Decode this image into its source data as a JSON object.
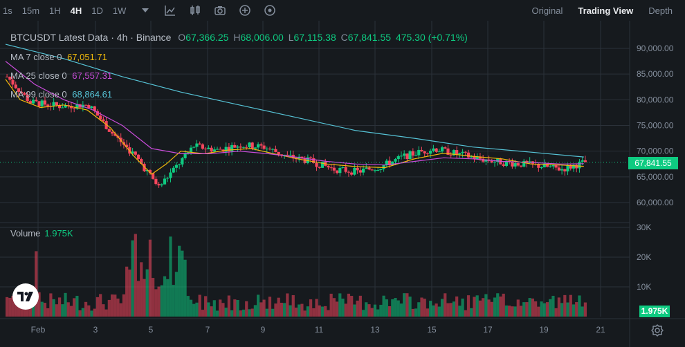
{
  "toolbar": {
    "timeframes": [
      {
        "label": "1s",
        "active": false
      },
      {
        "label": "15m",
        "active": false
      },
      {
        "label": "1H",
        "active": false
      },
      {
        "label": "4H",
        "active": true
      },
      {
        "label": "1D",
        "active": false
      },
      {
        "label": "1W",
        "active": false
      }
    ],
    "icons": [
      "chevron-down-icon",
      "indicator-icon",
      "candle-type-icon",
      "camera-icon",
      "plus-circle-icon",
      "target-icon"
    ]
  },
  "view_tabs": [
    {
      "label": "Original",
      "active": false
    },
    {
      "label": "Trading View",
      "active": true
    },
    {
      "label": "Depth",
      "active": false
    }
  ],
  "legend": {
    "symbol": "BTCUSDT Latest Data · 4h · Binance",
    "open_key": "O",
    "open": "67,366.25",
    "high_key": "H",
    "high": "68,006.00",
    "low_key": "L",
    "low": "67,115.38",
    "close_key": "C",
    "close": "67,841.55",
    "change": "475.30 (+0.71%)"
  },
  "ma": [
    {
      "label": "MA 7 close 0",
      "value": "67,051.71",
      "color": "#f0b90b"
    },
    {
      "label": "MA 25 close 0",
      "value": "67,557.31",
      "color": "#c94cd9"
    },
    {
      "label": "MA 99 close 0",
      "value": "68,864.61",
      "color": "#56c3d6"
    }
  ],
  "volume": {
    "label": "Volume",
    "value": "1.975K"
  },
  "current_price_tag": "67,841.55",
  "current_volume_tag": "1.975K",
  "colors": {
    "up": "#0ecb81",
    "down": "#f6465d",
    "background": "#161a1e"
  },
  "chart_data": {
    "type": "candlestick",
    "price_axis": {
      "ticks": [
        60000,
        65000,
        70000,
        75000,
        80000,
        85000,
        90000
      ],
      "tick_labels": [
        "60,000.00",
        "65,000.00",
        "70,000.00",
        "75,000.00",
        "80,000.00",
        "85,000.00",
        "90,000.00"
      ]
    },
    "volume_axis": {
      "ticks": [
        10000,
        20000,
        30000
      ],
      "tick_labels": [
        "10K",
        "20K",
        "30K"
      ]
    },
    "x_axis": {
      "labels": [
        "Feb",
        "3",
        "5",
        "7",
        "9",
        "11",
        "13",
        "15",
        "17",
        "19",
        "21"
      ]
    },
    "ma_series": {
      "ma7": [
        [
          0,
          84000
        ],
        [
          5,
          80000
        ],
        [
          12,
          78500
        ],
        [
          20,
          79000
        ],
        [
          28,
          78000
        ],
        [
          36,
          74500
        ],
        [
          44,
          69000
        ],
        [
          50,
          65500
        ],
        [
          55,
          67500
        ],
        [
          60,
          70000
        ],
        [
          68,
          69500
        ],
        [
          76,
          70200
        ],
        [
          84,
          70500
        ],
        [
          92,
          69500
        ],
        [
          100,
          68500
        ],
        [
          110,
          67500
        ],
        [
          120,
          67000
        ],
        [
          130,
          66800
        ],
        [
          140,
          68500
        ],
        [
          150,
          69600
        ],
        [
          160,
          69000
        ],
        [
          170,
          68500
        ],
        [
          180,
          67500
        ],
        [
          190,
          67300
        ],
        [
          198,
          67051
        ]
      ],
      "ma25": [
        [
          0,
          87500
        ],
        [
          10,
          83000
        ],
        [
          20,
          80000
        ],
        [
          30,
          78000
        ],
        [
          40,
          75000
        ],
        [
          50,
          70500
        ],
        [
          60,
          69500
        ],
        [
          70,
          69500
        ],
        [
          80,
          70000
        ],
        [
          90,
          69500
        ],
        [
          100,
          68800
        ],
        [
          110,
          68000
        ],
        [
          120,
          67500
        ],
        [
          130,
          67300
        ],
        [
          140,
          68000
        ],
        [
          150,
          68700
        ],
        [
          160,
          68500
        ],
        [
          170,
          68000
        ],
        [
          180,
          67800
        ],
        [
          190,
          67500
        ],
        [
          198,
          67557
        ]
      ],
      "ma99": [
        [
          0,
          90800
        ],
        [
          20,
          88000
        ],
        [
          40,
          84500
        ],
        [
          60,
          81500
        ],
        [
          80,
          79000
        ],
        [
          100,
          76500
        ],
        [
          120,
          74000
        ],
        [
          140,
          72500
        ],
        [
          160,
          70800
        ],
        [
          180,
          69800
        ],
        [
          198,
          68864
        ]
      ]
    }
  }
}
